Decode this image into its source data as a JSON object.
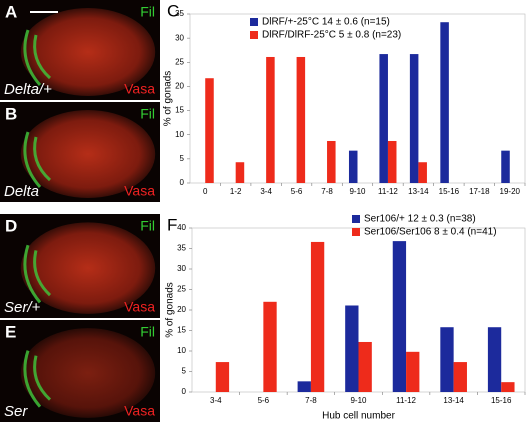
{
  "images": [
    {
      "letter": "A",
      "stain_green": "Fil",
      "stain_red": "Vasa",
      "genotype": "Delta/+"
    },
    {
      "letter": "B",
      "stain_green": "Fil",
      "stain_red": "Vasa",
      "genotype": "Delta"
    },
    {
      "letter": "D",
      "stain_green": "Fil",
      "stain_red": "Vasa",
      "genotype": "Ser/+"
    },
    {
      "letter": "E",
      "stain_green": "Fil",
      "stain_red": "Vasa",
      "genotype": "Ser"
    }
  ],
  "chart_data": [
    {
      "type": "bar",
      "panel": "C",
      "y_label": "% of gonads",
      "categories": [
        "0",
        "1-2",
        "3-4",
        "5-6",
        "7-8",
        "9-10",
        "11-12",
        "13-14",
        "15-16",
        "17-18",
        "19-20"
      ],
      "series": [
        {
          "name": "DlRF/+-25°C  14 ± 0.6 (n=15)",
          "color": "#1c2a9c",
          "values": [
            0,
            0,
            0,
            0,
            0,
            6.7,
            26.7,
            26.7,
            33.3,
            0,
            6.7
          ]
        },
        {
          "name": "DlRF/DlRF-25°C  5 ± 0.8 (n=23)",
          "color": "#ee2b1b",
          "values": [
            21.7,
            4.3,
            26.1,
            26.1,
            8.7,
            0,
            8.7,
            4.3,
            0,
            0,
            0
          ]
        }
      ],
      "ylim": [
        0,
        35
      ],
      "yticks": [
        0,
        5,
        10,
        15,
        20,
        25,
        30,
        35
      ]
    },
    {
      "type": "bar",
      "panel": "F",
      "y_label": "% of gonads",
      "x_label": "Hub cell number",
      "categories": [
        "3-4",
        "5-6",
        "7-8",
        "9-10",
        "11-12",
        "13-14",
        "15-16"
      ],
      "series": [
        {
          "name": "Ser106/+ 12 ± 0.3 (n=38)",
          "color": "#1c2a9c",
          "values": [
            0,
            0,
            2.6,
            21.1,
            36.8,
            15.8,
            15.8
          ]
        },
        {
          "name": "Ser106/Ser106 8 ± 0.4 (n=41)",
          "color": "#ee2b1b",
          "values": [
            7.3,
            22,
            36.6,
            12.2,
            9.8,
            7.3,
            2.4
          ]
        }
      ],
      "ylim": [
        0,
        40
      ],
      "yticks": [
        0,
        5,
        10,
        15,
        20,
        25,
        30,
        35,
        40
      ]
    }
  ]
}
